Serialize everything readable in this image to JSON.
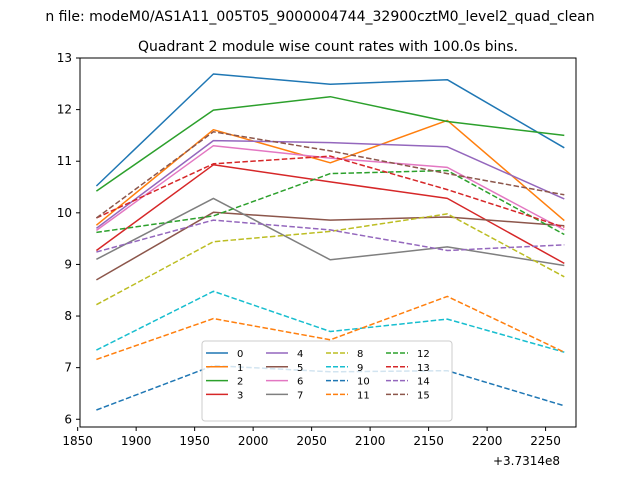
{
  "chart_data": {
    "type": "line",
    "suptitle": "n file: modeM0/AS1A11_005T05_9000004744_32900cztM0_level2_quad_clean",
    "title": "Quadrant 2 module wise count rates with 100.0s bins.",
    "xlabel": "",
    "ylabel": "",
    "x_offset_label": "+3.7314e8",
    "x": [
      1866,
      1966,
      2066,
      2166,
      2266
    ],
    "xlim": [
      1852,
      2276
    ],
    "ylim": [
      5.85,
      13.0
    ],
    "xticks": [
      1850,
      1900,
      1950,
      2000,
      2050,
      2100,
      2150,
      2200,
      2250
    ],
    "yticks": [
      6,
      7,
      8,
      9,
      10,
      11,
      12,
      13
    ],
    "grid": false,
    "legend": {
      "placement": "lower-center",
      "columns": 4
    },
    "series": [
      {
        "name": "0",
        "color": "#1f77b4",
        "dash": false,
        "values": [
          10.52,
          12.69,
          12.49,
          12.58,
          11.26
        ]
      },
      {
        "name": "1",
        "color": "#ff7f0e",
        "dash": false,
        "values": [
          9.76,
          11.61,
          10.97,
          11.79,
          9.85
        ]
      },
      {
        "name": "2",
        "color": "#2ca02c",
        "dash": false,
        "values": [
          10.42,
          11.99,
          12.25,
          11.77,
          11.5
        ]
      },
      {
        "name": "3",
        "color": "#d62728",
        "dash": false,
        "values": [
          9.27,
          10.93,
          10.6,
          10.28,
          9.02
        ]
      },
      {
        "name": "4",
        "color": "#9467bd",
        "dash": false,
        "values": [
          9.7,
          11.4,
          11.36,
          11.28,
          10.27
        ]
      },
      {
        "name": "5",
        "color": "#8c564b",
        "dash": false,
        "values": [
          8.7,
          10.01,
          9.86,
          9.92,
          9.75
        ]
      },
      {
        "name": "6",
        "color": "#e377c2",
        "dash": false,
        "values": [
          9.66,
          11.3,
          11.06,
          10.88,
          9.67
        ]
      },
      {
        "name": "7",
        "color": "#7f7f7f",
        "dash": false,
        "values": [
          9.1,
          10.28,
          9.09,
          9.34,
          8.98
        ]
      },
      {
        "name": "8",
        "color": "#bcbd22",
        "dash": true,
        "values": [
          8.22,
          9.44,
          9.64,
          9.98,
          8.76
        ]
      },
      {
        "name": "9",
        "color": "#17becf",
        "dash": true,
        "values": [
          7.34,
          8.48,
          7.7,
          7.94,
          7.3
        ]
      },
      {
        "name": "10",
        "color": "#1f77b4",
        "dash": true,
        "values": [
          6.18,
          7.04,
          6.92,
          6.94,
          6.26
        ]
      },
      {
        "name": "11",
        "color": "#ff7f0e",
        "dash": true,
        "values": [
          7.16,
          7.95,
          7.54,
          8.38,
          7.3
        ]
      },
      {
        "name": "12",
        "color": "#2ca02c",
        "dash": true,
        "values": [
          9.62,
          9.94,
          10.76,
          10.82,
          9.58
        ]
      },
      {
        "name": "13",
        "color": "#d62728",
        "dash": true,
        "values": [
          9.9,
          10.95,
          11.1,
          10.45,
          9.72
        ]
      },
      {
        "name": "14",
        "color": "#9467bd",
        "dash": true,
        "values": [
          9.24,
          9.86,
          9.67,
          9.27,
          9.38
        ]
      },
      {
        "name": "15",
        "color": "#8c564b",
        "dash": true,
        "values": [
          9.9,
          11.57,
          11.2,
          10.76,
          10.35
        ]
      }
    ]
  }
}
